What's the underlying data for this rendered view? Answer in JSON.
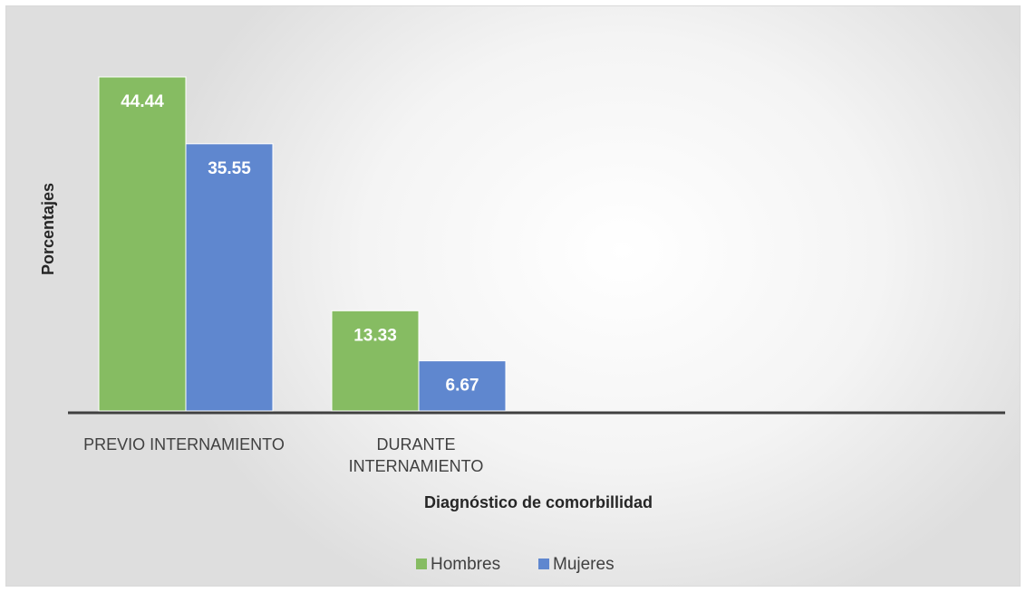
{
  "chart_data": {
    "type": "bar",
    "categories": [
      "PREVIO INTERNAMIENTO",
      "DURANTE INTERNAMIENTO"
    ],
    "series": [
      {
        "name": "Hombres",
        "values": [
          44.44,
          13.33
        ],
        "color": "#86bc62"
      },
      {
        "name": "Mujeres",
        "values": [
          35.55,
          6.67
        ],
        "color": "#5f87cf"
      }
    ],
    "xlabel": "Diagnóstico de comorbillidad",
    "ylabel": "Porcentajes",
    "ylim": [
      0,
      44.44
    ],
    "grid": false,
    "legend": "bottom"
  },
  "style": {
    "axis_color": "#404040"
  }
}
